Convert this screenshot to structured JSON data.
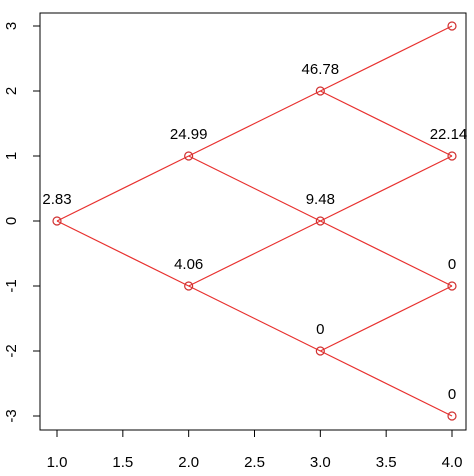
{
  "chart_data": {
    "type": "scatter",
    "title": "",
    "xlabel": "",
    "ylabel": "",
    "xlim": [
      1.0,
      4.0
    ],
    "ylim": [
      -3,
      3
    ],
    "x_ticks": [
      "1.0",
      "1.5",
      "2.0",
      "2.5",
      "3.0",
      "3.5",
      "4.0"
    ],
    "y_ticks": [
      "-3",
      "-2",
      "-1",
      "0",
      "1",
      "2",
      "3"
    ],
    "grid": false,
    "line_color": "#e8312f",
    "point_color": "#d03030",
    "nodes": [
      {
        "x": 1,
        "y": 0,
        "label": "2.83"
      },
      {
        "x": 2,
        "y": 1,
        "label": "24.99"
      },
      {
        "x": 2,
        "y": -1,
        "label": "4.06"
      },
      {
        "x": 3,
        "y": 2,
        "label": "46.78"
      },
      {
        "x": 3,
        "y": 0,
        "label": "9.48"
      },
      {
        "x": 3,
        "y": -2,
        "label": "0"
      },
      {
        "x": 4,
        "y": 3,
        "label": ""
      },
      {
        "x": 4,
        "y": 1,
        "label": "22.14"
      },
      {
        "x": 4,
        "y": -1,
        "label": "0"
      },
      {
        "x": 4,
        "y": -3,
        "label": "0"
      }
    ],
    "edges": [
      [
        [
          1,
          0
        ],
        [
          2,
          1
        ]
      ],
      [
        [
          1,
          0
        ],
        [
          2,
          -1
        ]
      ],
      [
        [
          2,
          1
        ],
        [
          3,
          2
        ]
      ],
      [
        [
          2,
          1
        ],
        [
          3,
          0
        ]
      ],
      [
        [
          2,
          -1
        ],
        [
          3,
          0
        ]
      ],
      [
        [
          2,
          -1
        ],
        [
          3,
          -2
        ]
      ],
      [
        [
          3,
          2
        ],
        [
          4,
          3
        ]
      ],
      [
        [
          3,
          2
        ],
        [
          4,
          1
        ]
      ],
      [
        [
          3,
          0
        ],
        [
          4,
          1
        ]
      ],
      [
        [
          3,
          0
        ],
        [
          4,
          -1
        ]
      ],
      [
        [
          3,
          -2
        ],
        [
          4,
          -1
        ]
      ],
      [
        [
          3,
          -2
        ],
        [
          4,
          -3
        ]
      ]
    ]
  }
}
